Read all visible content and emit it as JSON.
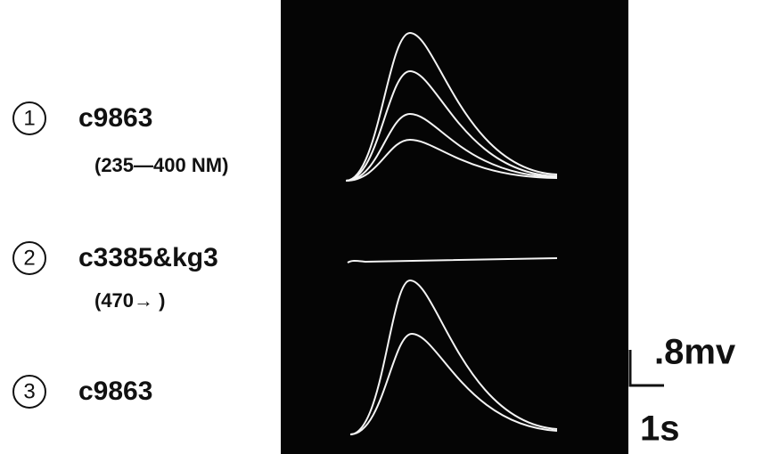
{
  "items": [
    {
      "number": "1",
      "label": "c9863",
      "range": "(235—400 NM)"
    },
    {
      "number": "2",
      "label": "c3385&kg3",
      "range": "(470→ )"
    },
    {
      "number": "3",
      "label": "c9863"
    }
  ],
  "scale": {
    "voltage": ".8mv",
    "time": "1s"
  }
}
